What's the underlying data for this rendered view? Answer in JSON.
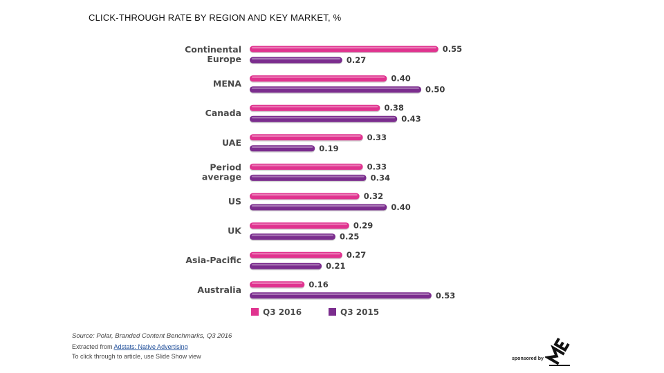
{
  "title": "CLICK-THROUGH RATE BY REGION AND KEY MARKET, %",
  "chart_data": {
    "type": "bar",
    "orientation": "horizontal",
    "categories": [
      [
        "Continental",
        "Europe"
      ],
      [
        "MENA"
      ],
      [
        "Canada"
      ],
      [
        "UAE"
      ],
      [
        "Period",
        "average"
      ],
      [
        "US"
      ],
      [
        "UK"
      ],
      [
        "Asia-Pacific"
      ],
      [
        "Australia"
      ]
    ],
    "series": [
      {
        "name": "Q3 2016",
        "color": "#e0338f",
        "values": [
          0.55,
          0.4,
          0.38,
          0.33,
          0.33,
          0.32,
          0.29,
          0.27,
          0.16
        ],
        "labels": [
          "0.55",
          "0.40",
          "0.38",
          "0.33",
          "0.33",
          "0.32",
          "0.29",
          "0.27",
          "0.16"
        ]
      },
      {
        "name": "Q3 2015",
        "color": "#7b2d8e",
        "values": [
          0.27,
          0.5,
          0.43,
          0.19,
          0.34,
          0.4,
          0.25,
          0.21,
          0.53
        ],
        "labels": [
          "0.27",
          "0.50",
          "0.43",
          "0.19",
          "0.34",
          "0.40",
          "0.25",
          "0.21",
          "0.53"
        ]
      }
    ],
    "legend": "bottom",
    "grid": false
  },
  "footer": {
    "source": "Source: Polar, Branded Content Benchmarks, Q3 2016",
    "extracted_prefix": "Extracted from ",
    "extracted_link": "Adstats: Native Advertising",
    "click_note": "To click through to article, use Slide Show view",
    "sponsor": "sponsored by"
  }
}
